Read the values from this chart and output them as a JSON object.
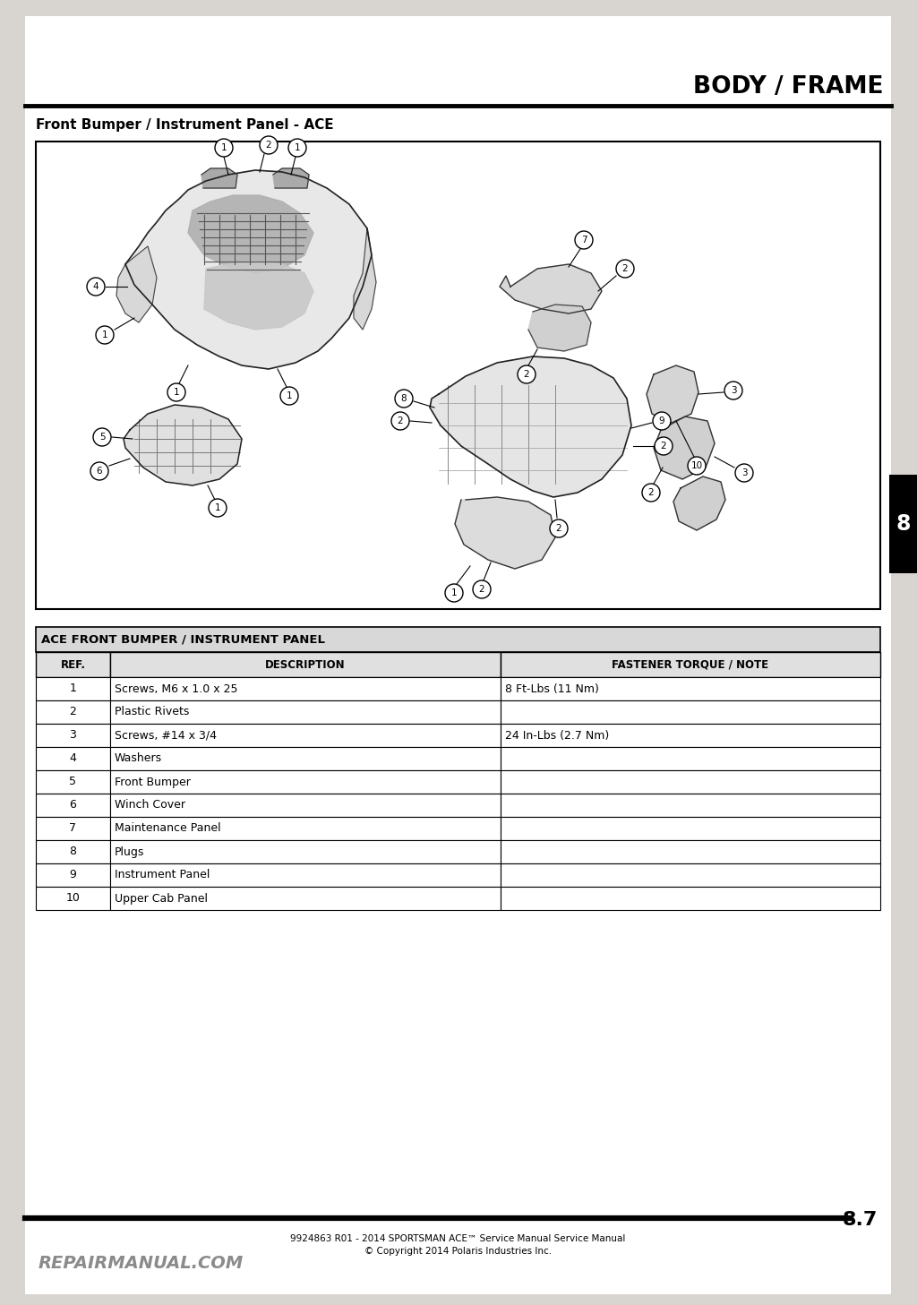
{
  "page_title": "BODY / FRAME",
  "section_title": "Front Bumper / Instrument Panel - ACE",
  "page_number": "8.7",
  "tab_number": "8",
  "table_title": "ACE FRONT BUMPER / INSTRUMENT PANEL",
  "col_headers": [
    "REF.",
    "DESCRIPTION",
    "FASTENER TORQUE / NOTE"
  ],
  "rows": [
    [
      "1",
      "Screws, M6 x 1.0 x 25",
      "8 Ft-Lbs (11 Nm)"
    ],
    [
      "2",
      "Plastic Rivets",
      ""
    ],
    [
      "3",
      "Screws, #14 x 3/4",
      "24 In-Lbs (2.7 Nm)"
    ],
    [
      "4",
      "Washers",
      ""
    ],
    [
      "5",
      "Front Bumper",
      ""
    ],
    [
      "6",
      "Winch Cover",
      ""
    ],
    [
      "7",
      "Maintenance Panel",
      ""
    ],
    [
      "8",
      "Plugs",
      ""
    ],
    [
      "9",
      "Instrument Panel",
      ""
    ],
    [
      "10",
      "Upper Cab Panel",
      ""
    ]
  ],
  "footer_line1": "9924863 R01 - 2014 SPORTSMAN ACE™ Service Manual Service Manual",
  "footer_line2": "© Copyright 2014 Polaris Industries Inc.",
  "watermark": "REPAIRMANUAL.COM",
  "bg_color": "#d8d5d0",
  "page_bg": "#ffffff"
}
